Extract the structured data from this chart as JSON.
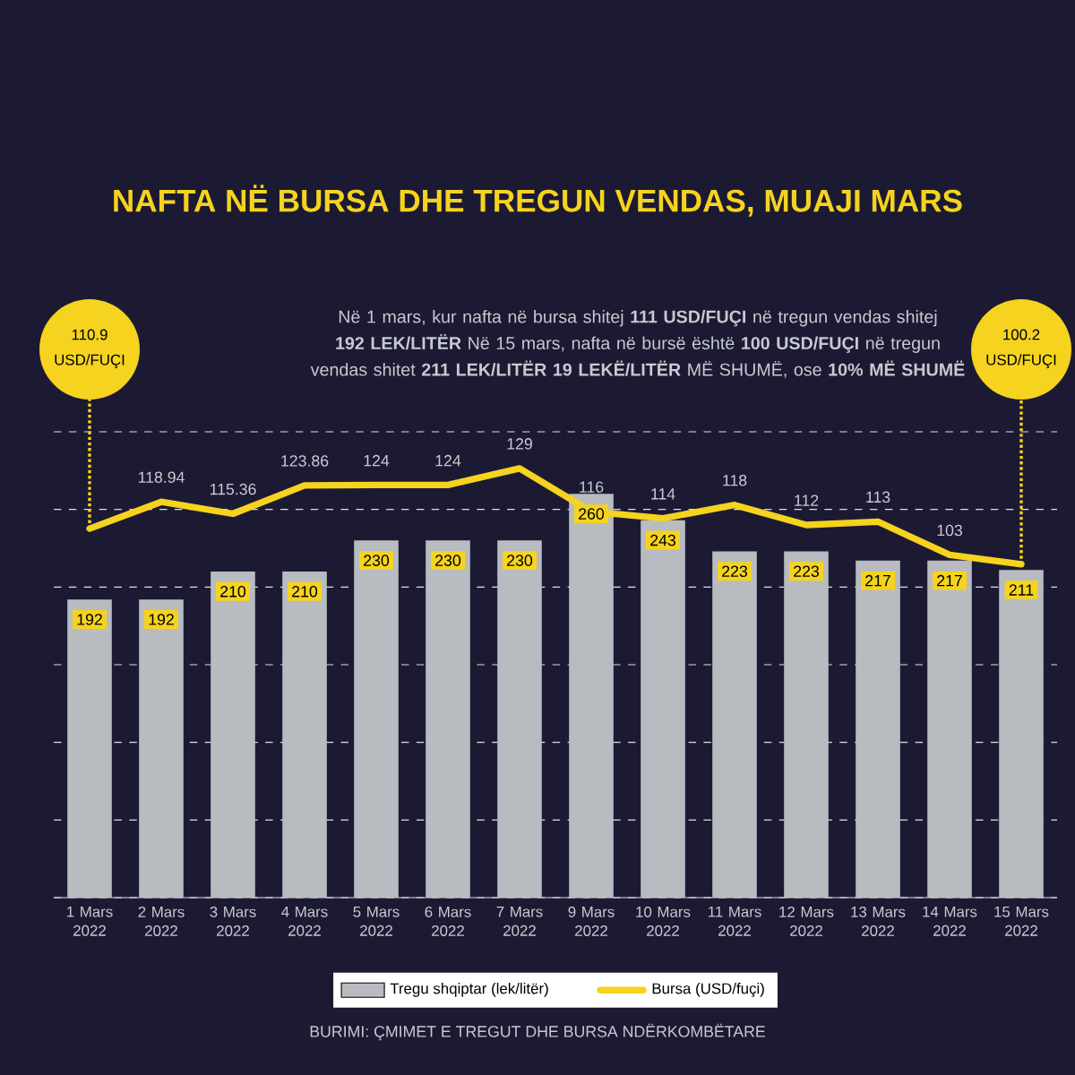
{
  "chart_data": {
    "type": "bar",
    "title": "NAFTA NË BURSA DHE TREGUN VENDAS, MUAJI MARS",
    "subtitle": "Në 1 mars, kur nafta në bursa shitej **111 USD/FUÇI** në tregun vendas shitej **192 LEK/LITËR** Në 15 mars, nafta në bursë është **100 USD/FUÇI** në tregun vendas shitet **211 LEK/LITËR** **19 LEKË/LITËR** MË SHUMË, ose **10% MË SHUMË**",
    "categories": [
      "1 Mars 2022",
      "2 Mars 2022",
      "3 Mars 2022",
      "4 Mars 2022",
      "5 Mars 2022",
      "6 Mars 2022",
      "7 Mars 2022",
      "9 Mars 2022",
      "10 Mars 2022",
      "11 Mars 2022",
      "12 Mars 2022",
      "13 Mars 2022",
      "14 Mars 2022",
      "15 Mars 2022"
    ],
    "series": [
      {
        "name": "Tregu shqiptar (lek/litër)",
        "color": "#b8bcc1",
        "values": [
          192,
          192,
          210,
          210,
          230,
          230,
          230,
          260,
          243,
          223,
          223,
          217,
          217,
          211
        ],
        "value_labels": [
          "192",
          "192",
          "210",
          "210",
          "230",
          "230",
          "230",
          "260",
          "243",
          "223",
          "223",
          "217",
          "217",
          "211"
        ]
      },
      {
        "name": "Bursa (USD/fuçi)",
        "type": "line",
        "axis": "y2",
        "color": "#f5d31e",
        "values": [
          110.9,
          118.94,
          115.36,
          123.86,
          124,
          124,
          129,
          116,
          114,
          118,
          112,
          113,
          103,
          100.2
        ],
        "value_labels": [
          null,
          "118.94",
          "115.36",
          "123.86",
          "124",
          "124",
          "129",
          "116",
          "114",
          "118",
          "112",
          "113",
          "103",
          null
        ]
      }
    ],
    "ylim": [
      0,
      300
    ],
    "yticks": [
      {
        "value": 0,
        "label": null
      },
      {
        "value": 50,
        "label": null
      },
      {
        "value": 100,
        "label": null
      },
      {
        "value": 150,
        "label": null
      },
      {
        "value": 200,
        "label": null
      },
      {
        "value": 250,
        "label": null
      },
      {
        "value": 300,
        "label": null
      }
    ],
    "y2lim": [
      0,
      140
    ],
    "tick_labels": "x",
    "grid": "y",
    "legend": "bottom",
    "annotations": [
      "110.9 USD/FUÇI",
      "100.2 USD/FUÇI",
      "BURIMI: ÇMIMET E TREGUT DHE BURSA NDËRKOMBËTARE"
    ]
  }
}
